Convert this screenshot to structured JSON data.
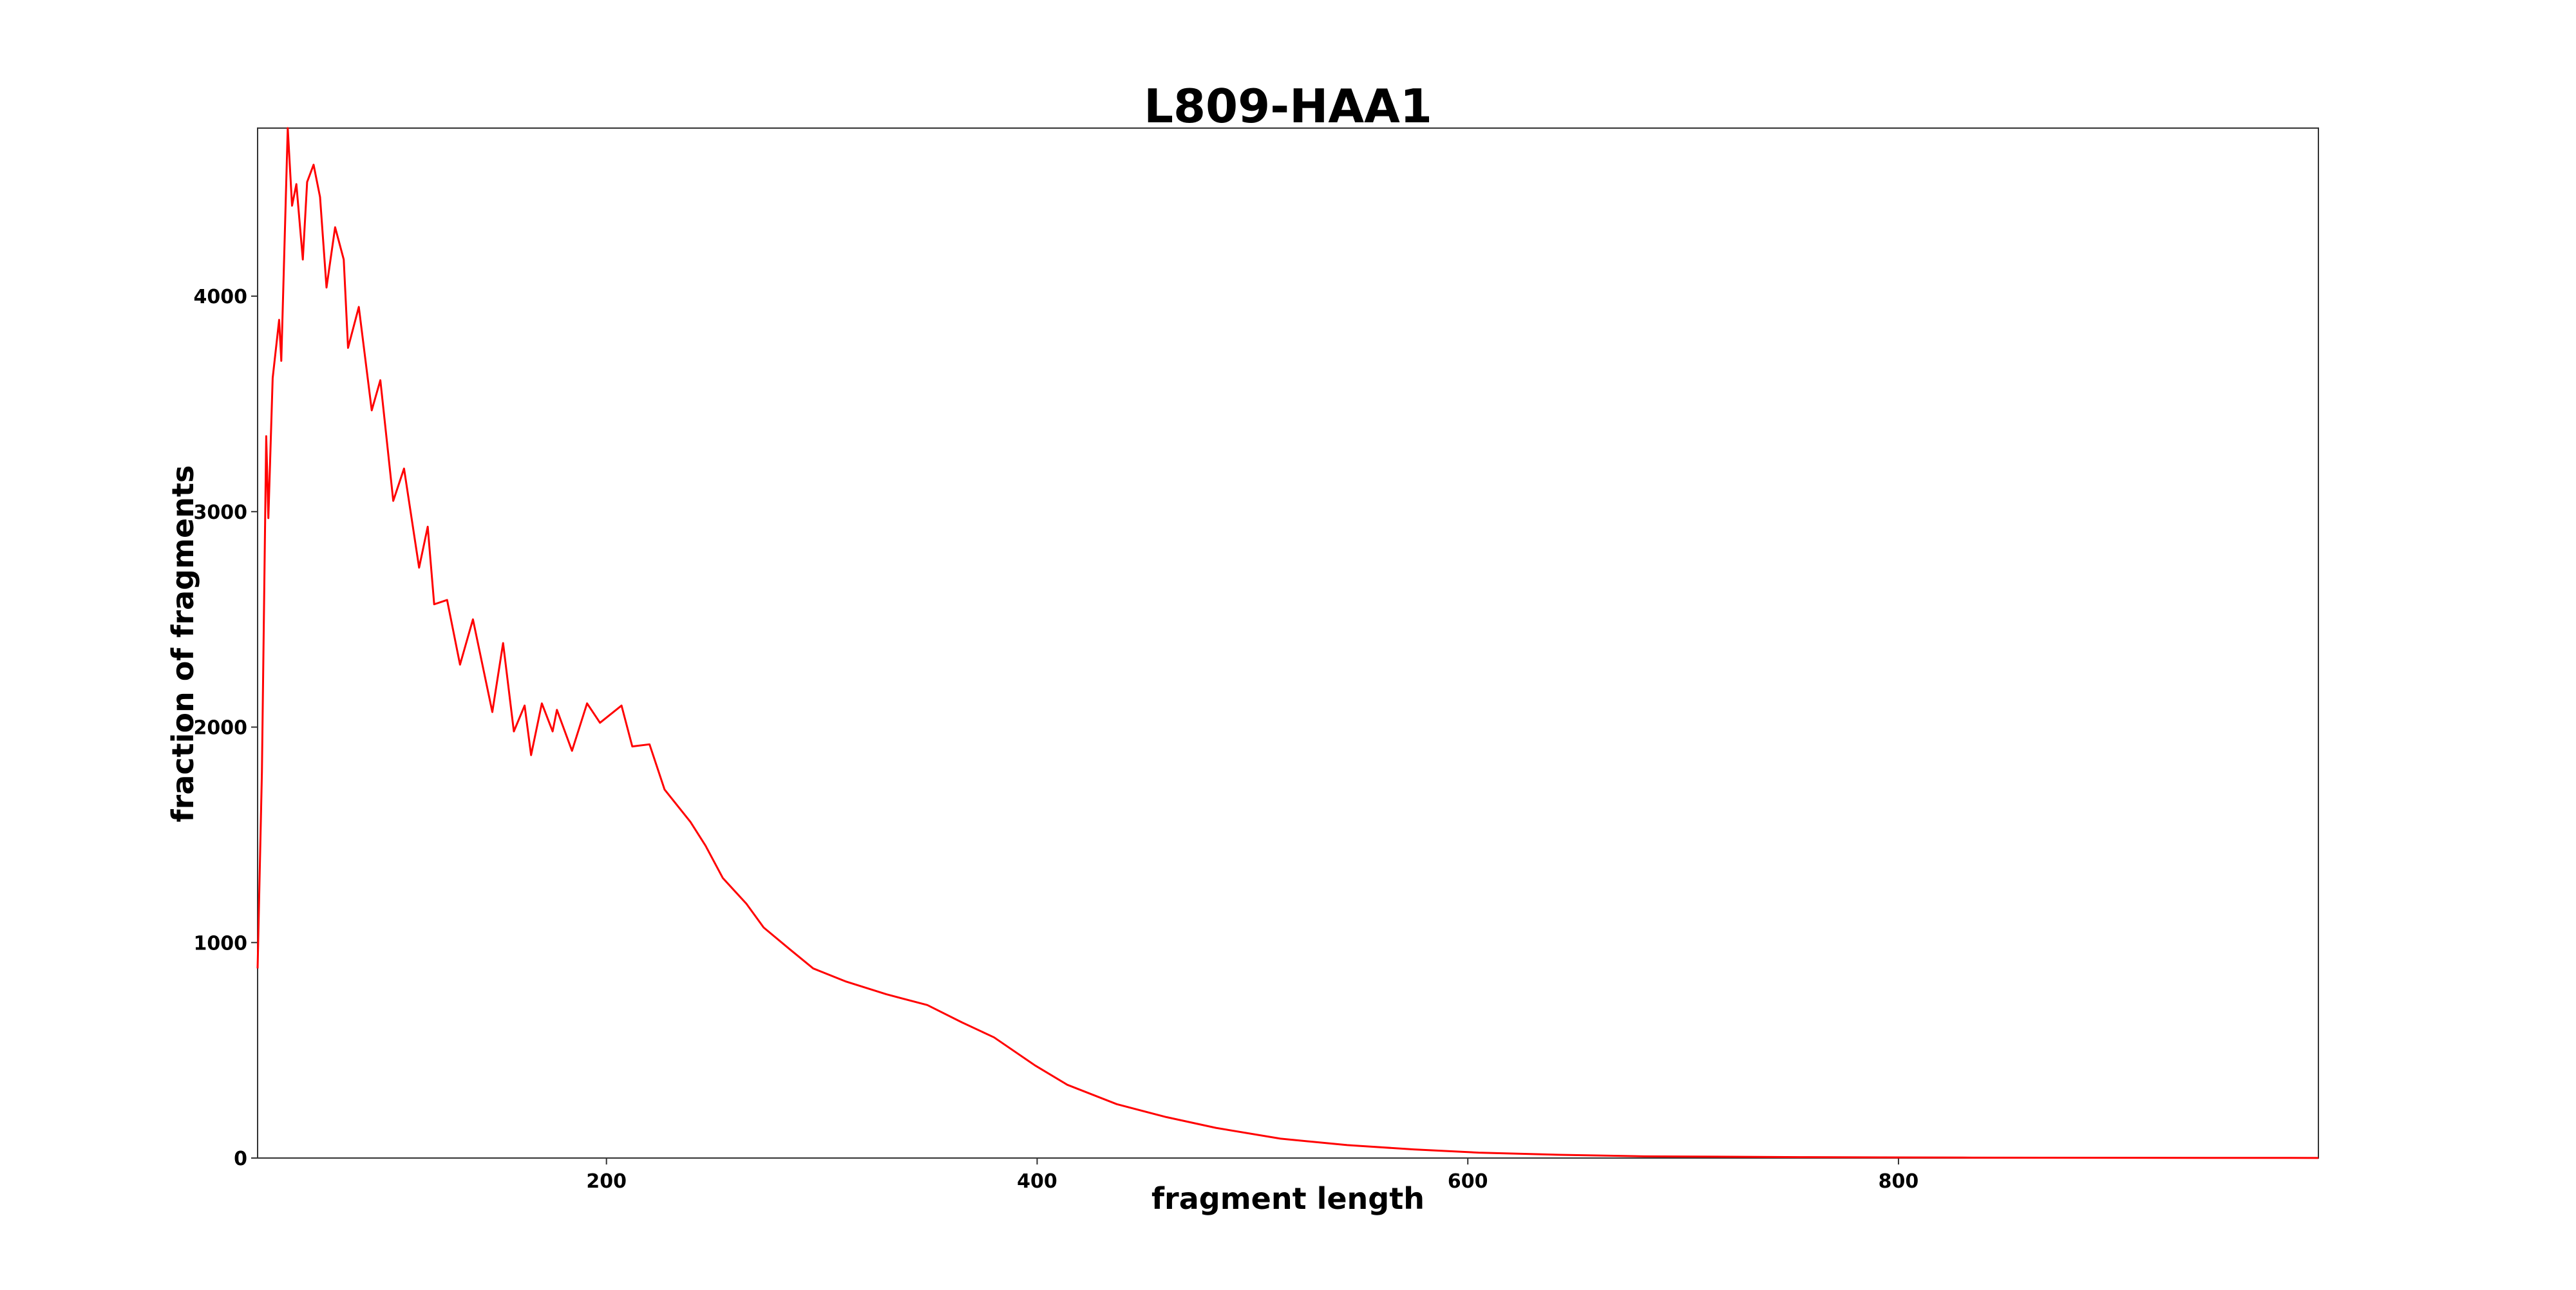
{
  "chart_data": {
    "type": "line",
    "title": "L809-HAA1",
    "xlabel": "fragment length",
    "ylabel": "fraction of fragments",
    "x": [
      38,
      40,
      42,
      43,
      45,
      48,
      49,
      52,
      54,
      56,
      59,
      61,
      64,
      67,
      70,
      74,
      78,
      80,
      85,
      91,
      95,
      101,
      106,
      113,
      117,
      120,
      126,
      132,
      138,
      147,
      152,
      157,
      162,
      165,
      170,
      175,
      177,
      184,
      191,
      197,
      207,
      212,
      220,
      227,
      239,
      246,
      254,
      265,
      273,
      285,
      296,
      311,
      330,
      349,
      365,
      380,
      399,
      414,
      437,
      460,
      483,
      513,
      544,
      575,
      605,
      643,
      682,
      758,
      834,
      910,
      995
    ],
    "series": [
      {
        "name": "L809-HAA1",
        "color": "#ff0000",
        "values": [
          880,
          1790,
          3350,
          2970,
          3620,
          3890,
          3700,
          4780,
          4420,
          4520,
          4170,
          4530,
          4610,
          4460,
          4040,
          4320,
          4170,
          3760,
          3950,
          3470,
          3610,
          3050,
          3200,
          2740,
          2930,
          2570,
          2590,
          2290,
          2500,
          2070,
          2390,
          1980,
          2100,
          1870,
          2110,
          1980,
          2080,
          1890,
          2110,
          2020,
          2100,
          1910,
          1920,
          1710,
          1560,
          1450,
          1300,
          1180,
          1070,
          970,
          880,
          820,
          760,
          710,
          630,
          560,
          430,
          340,
          250,
          190,
          140,
          90,
          60,
          40,
          25,
          15,
          8,
          4,
          2,
          1,
          0.5
        ]
      }
    ],
    "xlim": [
      38,
      995
    ],
    "ylim": [
      0,
      4780
    ],
    "xticks": [
      200,
      400,
      600,
      800
    ],
    "yticks": [
      0,
      1000,
      2000,
      3000,
      4000
    ]
  }
}
